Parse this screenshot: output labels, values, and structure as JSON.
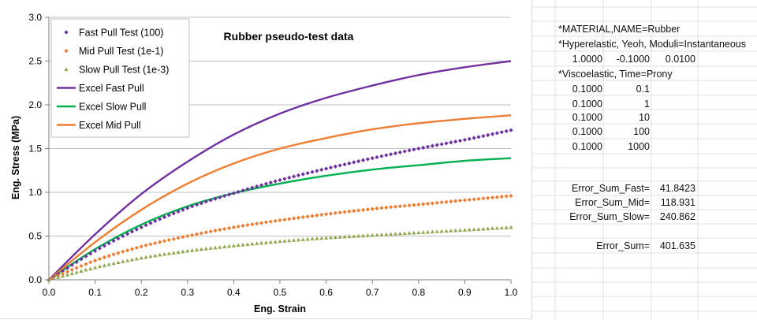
{
  "chart_data": {
    "type": "line",
    "title": "Rubber pseudo-test data",
    "xlabel": "Eng. Strain",
    "ylabel": "Eng. Stress (MPa)",
    "xlim": [
      0,
      1
    ],
    "ylim": [
      0,
      3
    ],
    "xticks": [
      "0.0",
      "0.1",
      "0.2",
      "0.3",
      "0.4",
      "0.5",
      "0.6",
      "0.7",
      "0.8",
      "0.9",
      "1.0"
    ],
    "yticks": [
      "0.0",
      "0.5",
      "1.0",
      "1.5",
      "2.0",
      "2.5",
      "3.0"
    ],
    "grid": true,
    "legend_position": "top-left",
    "series": [
      {
        "name": "Fast Pull Test (100)",
        "style": "marker",
        "marker": "diamond",
        "color": "#7030a0",
        "x": [
          0,
          0.1,
          0.2,
          0.3,
          0.4,
          0.5,
          0.6,
          0.7,
          0.8,
          0.9,
          1.0
        ],
        "y": [
          0,
          0.33,
          0.6,
          0.82,
          0.99,
          1.14,
          1.27,
          1.39,
          1.5,
          1.6,
          1.71
        ]
      },
      {
        "name": "Mid Pull Test (1e-1)",
        "style": "marker",
        "marker": "diamond",
        "color": "#ed7d31",
        "x": [
          0,
          0.1,
          0.2,
          0.3,
          0.4,
          0.5,
          0.6,
          0.7,
          0.8,
          0.9,
          1.0
        ],
        "y": [
          0,
          0.22,
          0.38,
          0.5,
          0.6,
          0.68,
          0.75,
          0.81,
          0.86,
          0.91,
          0.96
        ]
      },
      {
        "name": "Slow Pull Test (1e-3)",
        "style": "marker",
        "marker": "triangle",
        "color": "#8faa4f",
        "x": [
          0,
          0.1,
          0.2,
          0.3,
          0.4,
          0.5,
          0.6,
          0.7,
          0.8,
          0.9,
          1.0
        ],
        "y": [
          0,
          0.14,
          0.25,
          0.33,
          0.39,
          0.44,
          0.48,
          0.51,
          0.54,
          0.57,
          0.6
        ]
      },
      {
        "name": "Excel Fast Pull",
        "style": "line",
        "color": "#7030a0",
        "x": [
          0,
          0.1,
          0.2,
          0.3,
          0.4,
          0.5,
          0.6,
          0.7,
          0.8,
          0.9,
          1.0
        ],
        "y": [
          0,
          0.52,
          0.98,
          1.35,
          1.66,
          1.9,
          2.08,
          2.22,
          2.34,
          2.43,
          2.5
        ]
      },
      {
        "name": "Excel Slow Pull",
        "style": "line",
        "color": "#00b050",
        "x": [
          0,
          0.1,
          0.2,
          0.3,
          0.4,
          0.5,
          0.6,
          0.7,
          0.8,
          0.9,
          1.0
        ],
        "y": [
          0,
          0.35,
          0.63,
          0.84,
          0.99,
          1.1,
          1.19,
          1.26,
          1.31,
          1.36,
          1.39
        ]
      },
      {
        "name": "Excel Mid Pull",
        "style": "line",
        "color": "#ed7d31",
        "x": [
          0,
          0.1,
          0.2,
          0.3,
          0.4,
          0.5,
          0.6,
          0.7,
          0.8,
          0.9,
          1.0
        ],
        "y": [
          0,
          0.43,
          0.8,
          1.1,
          1.33,
          1.5,
          1.62,
          1.72,
          1.79,
          1.84,
          1.88
        ]
      }
    ]
  },
  "sheet": {
    "material": "*MATERIAL,NAME=Rubber",
    "hyperelastic": "*Hyperelastic, Yeoh, Moduli=Instantaneous",
    "yeoh_coeffs": [
      "1.0000",
      "-0.1000",
      "0.0100"
    ],
    "viscoelastic": "*Viscoelastic, Time=Prony",
    "prony": [
      {
        "g": "0.1000",
        "tau": "0.1"
      },
      {
        "g": "0.1000",
        "tau": "1"
      },
      {
        "g": "0.1000",
        "tau": "10"
      },
      {
        "g": "0.1000",
        "tau": "100"
      },
      {
        "g": "0.1000",
        "tau": "1000"
      }
    ],
    "errors": [
      {
        "label": "Error_Sum_Fast=",
        "value": "41.8423"
      },
      {
        "label": "Error_Sum_Mid=",
        "value": "118.931"
      },
      {
        "label": "Error_Sum_Slow=",
        "value": "240.862"
      }
    ],
    "total": {
      "label": "Error_Sum=",
      "value": "401.635"
    }
  }
}
